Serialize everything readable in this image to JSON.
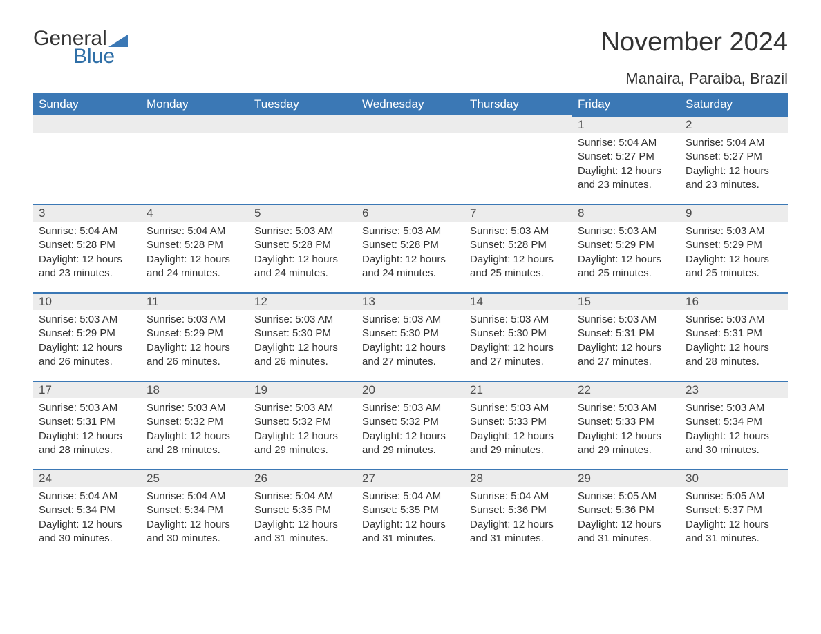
{
  "brand": {
    "word1": "General",
    "word2": "Blue",
    "triangle_color": "#3b78b5",
    "word1_color": "#333333",
    "word2_color": "#2f6fa7"
  },
  "title": {
    "month_year": "November 2024",
    "location": "Manaira, Paraiba, Brazil"
  },
  "colors": {
    "header_bg": "#3b78b5",
    "header_text": "#ffffff",
    "daynum_bg": "#ececec",
    "daynum_text": "#4a4a4a",
    "body_text": "#333333",
    "page_bg": "#ffffff",
    "row_rule": "#3b78b5"
  },
  "weekdays": [
    "Sunday",
    "Monday",
    "Tuesday",
    "Wednesday",
    "Thursday",
    "Friday",
    "Saturday"
  ],
  "leading_blanks": 5,
  "days": [
    {
      "n": 1,
      "sunrise": "5:04 AM",
      "sunset": "5:27 PM",
      "daylight": "12 hours and 23 minutes."
    },
    {
      "n": 2,
      "sunrise": "5:04 AM",
      "sunset": "5:27 PM",
      "daylight": "12 hours and 23 minutes."
    },
    {
      "n": 3,
      "sunrise": "5:04 AM",
      "sunset": "5:28 PM",
      "daylight": "12 hours and 23 minutes."
    },
    {
      "n": 4,
      "sunrise": "5:04 AM",
      "sunset": "5:28 PM",
      "daylight": "12 hours and 24 minutes."
    },
    {
      "n": 5,
      "sunrise": "5:03 AM",
      "sunset": "5:28 PM",
      "daylight": "12 hours and 24 minutes."
    },
    {
      "n": 6,
      "sunrise": "5:03 AM",
      "sunset": "5:28 PM",
      "daylight": "12 hours and 24 minutes."
    },
    {
      "n": 7,
      "sunrise": "5:03 AM",
      "sunset": "5:28 PM",
      "daylight": "12 hours and 25 minutes."
    },
    {
      "n": 8,
      "sunrise": "5:03 AM",
      "sunset": "5:29 PM",
      "daylight": "12 hours and 25 minutes."
    },
    {
      "n": 9,
      "sunrise": "5:03 AM",
      "sunset": "5:29 PM",
      "daylight": "12 hours and 25 minutes."
    },
    {
      "n": 10,
      "sunrise": "5:03 AM",
      "sunset": "5:29 PM",
      "daylight": "12 hours and 26 minutes."
    },
    {
      "n": 11,
      "sunrise": "5:03 AM",
      "sunset": "5:29 PM",
      "daylight": "12 hours and 26 minutes."
    },
    {
      "n": 12,
      "sunrise": "5:03 AM",
      "sunset": "5:30 PM",
      "daylight": "12 hours and 26 minutes."
    },
    {
      "n": 13,
      "sunrise": "5:03 AM",
      "sunset": "5:30 PM",
      "daylight": "12 hours and 27 minutes."
    },
    {
      "n": 14,
      "sunrise": "5:03 AM",
      "sunset": "5:30 PM",
      "daylight": "12 hours and 27 minutes."
    },
    {
      "n": 15,
      "sunrise": "5:03 AM",
      "sunset": "5:31 PM",
      "daylight": "12 hours and 27 minutes."
    },
    {
      "n": 16,
      "sunrise": "5:03 AM",
      "sunset": "5:31 PM",
      "daylight": "12 hours and 28 minutes."
    },
    {
      "n": 17,
      "sunrise": "5:03 AM",
      "sunset": "5:31 PM",
      "daylight": "12 hours and 28 minutes."
    },
    {
      "n": 18,
      "sunrise": "5:03 AM",
      "sunset": "5:32 PM",
      "daylight": "12 hours and 28 minutes."
    },
    {
      "n": 19,
      "sunrise": "5:03 AM",
      "sunset": "5:32 PM",
      "daylight": "12 hours and 29 minutes."
    },
    {
      "n": 20,
      "sunrise": "5:03 AM",
      "sunset": "5:32 PM",
      "daylight": "12 hours and 29 minutes."
    },
    {
      "n": 21,
      "sunrise": "5:03 AM",
      "sunset": "5:33 PM",
      "daylight": "12 hours and 29 minutes."
    },
    {
      "n": 22,
      "sunrise": "5:03 AM",
      "sunset": "5:33 PM",
      "daylight": "12 hours and 29 minutes."
    },
    {
      "n": 23,
      "sunrise": "5:03 AM",
      "sunset": "5:34 PM",
      "daylight": "12 hours and 30 minutes."
    },
    {
      "n": 24,
      "sunrise": "5:04 AM",
      "sunset": "5:34 PM",
      "daylight": "12 hours and 30 minutes."
    },
    {
      "n": 25,
      "sunrise": "5:04 AM",
      "sunset": "5:34 PM",
      "daylight": "12 hours and 30 minutes."
    },
    {
      "n": 26,
      "sunrise": "5:04 AM",
      "sunset": "5:35 PM",
      "daylight": "12 hours and 31 minutes."
    },
    {
      "n": 27,
      "sunrise": "5:04 AM",
      "sunset": "5:35 PM",
      "daylight": "12 hours and 31 minutes."
    },
    {
      "n": 28,
      "sunrise": "5:04 AM",
      "sunset": "5:36 PM",
      "daylight": "12 hours and 31 minutes."
    },
    {
      "n": 29,
      "sunrise": "5:05 AM",
      "sunset": "5:36 PM",
      "daylight": "12 hours and 31 minutes."
    },
    {
      "n": 30,
      "sunrise": "5:05 AM",
      "sunset": "5:37 PM",
      "daylight": "12 hours and 31 minutes."
    }
  ],
  "labels": {
    "sunrise": "Sunrise: ",
    "sunset": "Sunset: ",
    "daylight": "Daylight: "
  },
  "typography": {
    "title_fontsize": 38,
    "location_fontsize": 22,
    "header_fontsize": 17,
    "daynum_fontsize": 17,
    "body_fontsize": 15
  }
}
